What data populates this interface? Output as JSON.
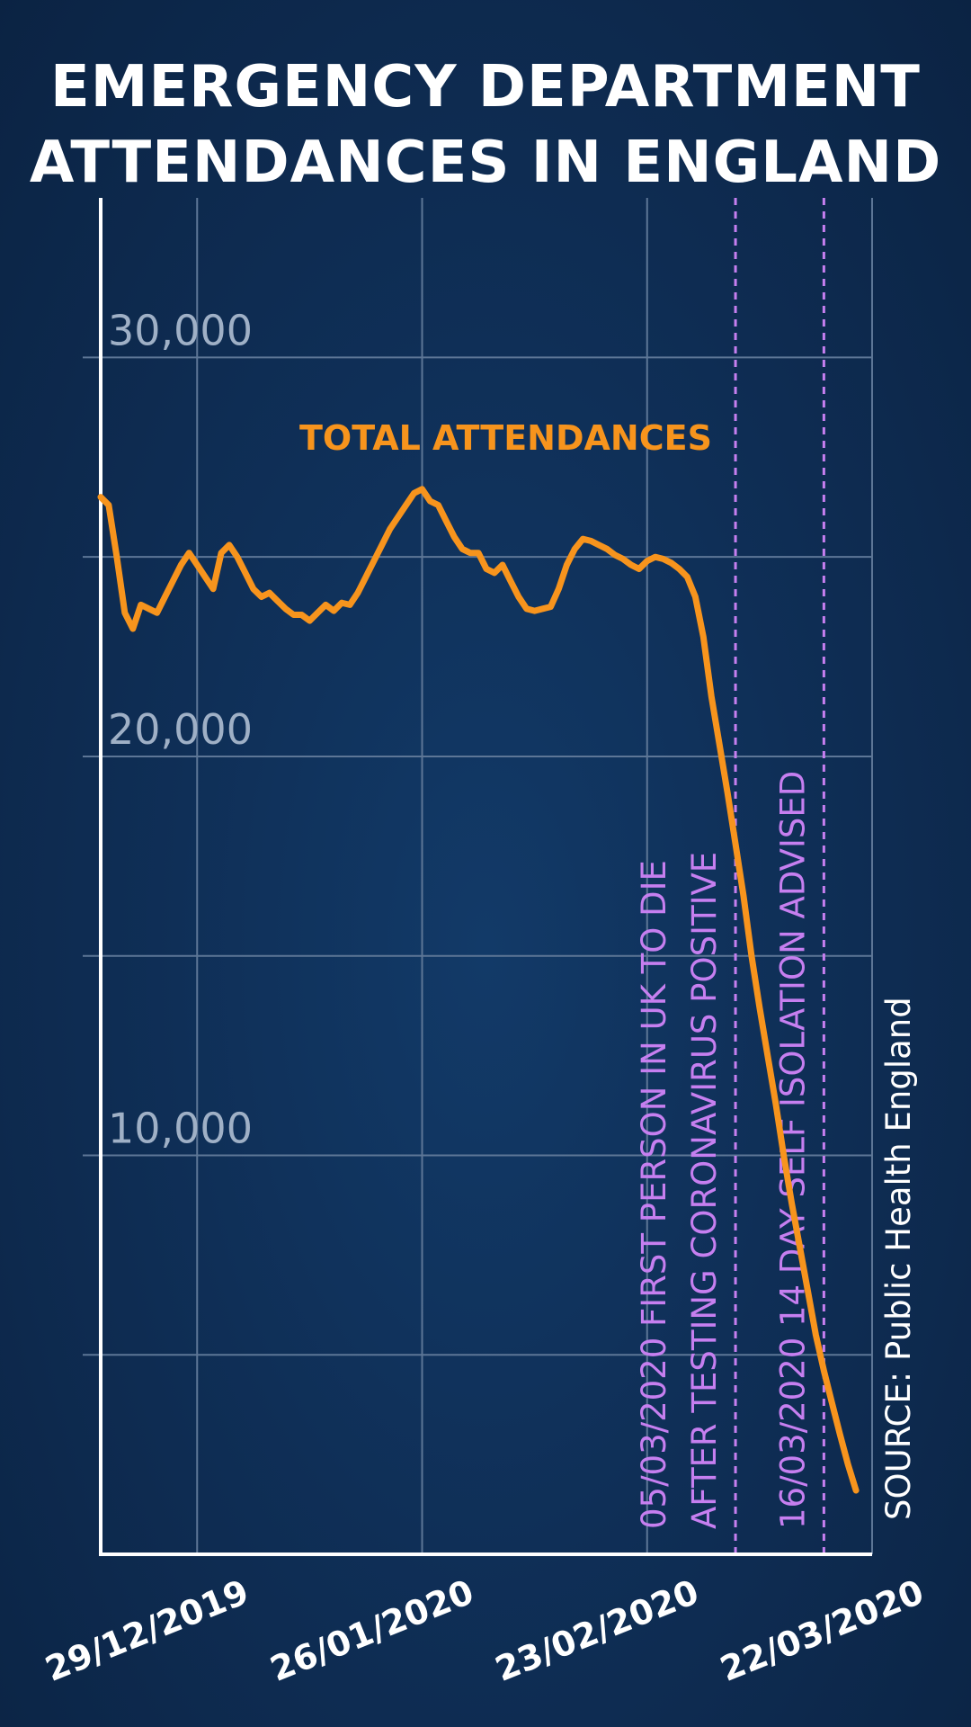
{
  "title_line1": "EMERGENCY DEPARTMENT",
  "title_line2": "ATTENDANCES IN ENGLAND",
  "source": "SOURCE: Public Health England",
  "colors": {
    "line": "#f7941d",
    "annotation": "#c67ff0",
    "grid": "#5d7696",
    "axis": "#ffffff",
    "background": "#0f2f57"
  },
  "chart_data": {
    "type": "line",
    "title": "EMERGENCY DEPARTMENT ATTENDANCES IN ENGLAND",
    "xlabel": "",
    "ylabel": "",
    "x_ticks": [
      "29/12/2019",
      "26/01/2020",
      "23/02/2020",
      "22/03/2020"
    ],
    "y_ticks": [
      {
        "value": 10000,
        "label": "10,000"
      },
      {
        "value": 20000,
        "label": "20,000"
      },
      {
        "value": 30000,
        "label": "30,000"
      }
    ],
    "ylim": [
      0,
      34000
    ],
    "xlim": [
      "2019-12-17",
      "2020-03-22"
    ],
    "grid": true,
    "series": [
      {
        "name": "TOTAL ATTENDANCES",
        "x": [
          "2019-12-17",
          "2019-12-18",
          "2019-12-19",
          "2019-12-20",
          "2019-12-21",
          "2019-12-22",
          "2019-12-23",
          "2019-12-24",
          "2019-12-25",
          "2019-12-26",
          "2019-12-27",
          "2019-12-28",
          "2019-12-29",
          "2019-12-30",
          "2019-12-31",
          "2020-01-01",
          "2020-01-02",
          "2020-01-03",
          "2020-01-04",
          "2020-01-05",
          "2020-01-06",
          "2020-01-07",
          "2020-01-08",
          "2020-01-09",
          "2020-01-10",
          "2020-01-11",
          "2020-01-12",
          "2020-01-13",
          "2020-01-14",
          "2020-01-15",
          "2020-01-16",
          "2020-01-17",
          "2020-01-18",
          "2020-01-19",
          "2020-01-20",
          "2020-01-21",
          "2020-01-22",
          "2020-01-23",
          "2020-01-24",
          "2020-01-25",
          "2020-01-26",
          "2020-01-27",
          "2020-01-28",
          "2020-01-29",
          "2020-01-30",
          "2020-01-31",
          "2020-02-01",
          "2020-02-02",
          "2020-02-03",
          "2020-02-04",
          "2020-02-05",
          "2020-02-06",
          "2020-02-07",
          "2020-02-08",
          "2020-02-09",
          "2020-02-10",
          "2020-02-11",
          "2020-02-12",
          "2020-02-13",
          "2020-02-14",
          "2020-02-15",
          "2020-02-16",
          "2020-02-17",
          "2020-02-18",
          "2020-02-19",
          "2020-02-20",
          "2020-02-21",
          "2020-02-22",
          "2020-02-23",
          "2020-02-24",
          "2020-02-25",
          "2020-02-26",
          "2020-02-27",
          "2020-02-28",
          "2020-02-29",
          "2020-03-01",
          "2020-03-02",
          "2020-03-03",
          "2020-03-04",
          "2020-03-05",
          "2020-03-06",
          "2020-03-07",
          "2020-03-08",
          "2020-03-09",
          "2020-03-10",
          "2020-03-11",
          "2020-03-12",
          "2020-03-13",
          "2020-03-14",
          "2020-03-15",
          "2020-03-16",
          "2020-03-17",
          "2020-03-18",
          "2020-03-19",
          "2020-03-20"
        ],
        "values": [
          26500,
          26300,
          25000,
          23600,
          23200,
          23800,
          23700,
          23600,
          24000,
          24400,
          24800,
          25100,
          24800,
          24500,
          24200,
          25100,
          25300,
          25000,
          24600,
          24200,
          24000,
          24100,
          23900,
          23700,
          23550,
          23550,
          23400,
          23600,
          23800,
          23650,
          23850,
          23800,
          24100,
          24500,
          24900,
          25300,
          25700,
          26000,
          26300,
          26600,
          26700,
          26400,
          26300,
          25900,
          25500,
          25200,
          25100,
          25100,
          24700,
          24600,
          24800,
          24400,
          24000,
          23700,
          23650,
          23700,
          23750,
          24200,
          24800,
          25200,
          25450,
          25400,
          25300,
          25200,
          25050,
          24950,
          24800,
          24700,
          24900,
          25000,
          24950,
          24850,
          24700,
          24500,
          24000,
          23000,
          21500,
          20300,
          19100,
          17800,
          16500,
          15000,
          13700,
          12500,
          11300,
          10000,
          8800,
          7700,
          6600,
          5500,
          4600,
          3800,
          3000,
          2250,
          1600
        ]
      }
    ],
    "annotations": [
      {
        "date": "2020-03-05",
        "lines": [
          "05/03/2020 FIRST PERSON IN UK TO DIE",
          "AFTER TESTING CORONAVIRUS POSITIVE"
        ]
      },
      {
        "date": "2020-03-16",
        "lines": [
          "16/03/2020 14 DAY SELF ISOLATION ADVISED"
        ]
      }
    ]
  }
}
